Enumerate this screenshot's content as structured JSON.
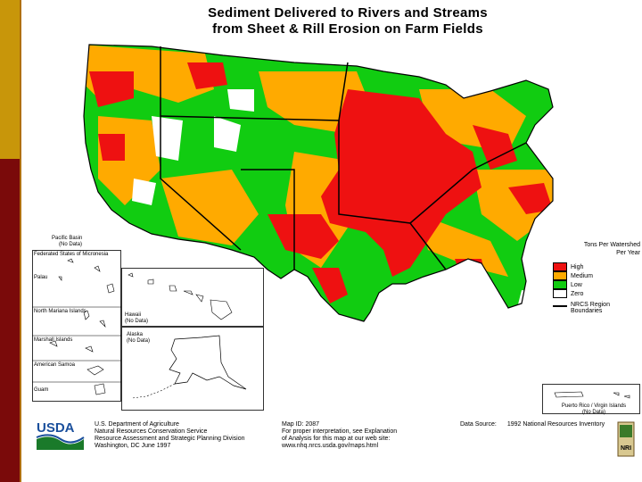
{
  "title_line1": "Sediment Delivered to Rivers and Streams",
  "title_line2": "from Sheet & Rill Erosion on Farm Fields",
  "legend": {
    "heading_line1": "Tons Per Watershed",
    "heading_line2": "Per Year",
    "items": [
      {
        "label": "High",
        "color": "#ee1111"
      },
      {
        "label": "Medium",
        "color": "#ffaa00"
      },
      {
        "label": "Low",
        "color": "#11cc11"
      },
      {
        "label": "Zero",
        "color": "#ffffff"
      }
    ],
    "boundary_line1": "NRCS Region",
    "boundary_line2": "Boundaries"
  },
  "insets": {
    "pacific_basin": "Pacific Basin",
    "pacific_basin_note": "(No Data)",
    "micronesia": "Federated States of Micronesia",
    "palau": "Palau",
    "north_mariana": "North Mariana Islands",
    "marshall": "Marshall Islands",
    "american_samoa": "American Samoa",
    "guam": "Guam",
    "hawaii": "Hawaii",
    "hawaii_note": "(No Data)",
    "alaska": "Alaska",
    "alaska_note": "(No Data)",
    "puerto_rico": "Puerto Rico / Virgin Islands",
    "puerto_rico_note": "(No Data)"
  },
  "footer": {
    "logo_text": "USDA",
    "agency_line1": "U.S. Department of Agriculture",
    "agency_line2": "Natural Resources Conservation Service",
    "agency_line3": "Resource Assessment and Strategic Planning Division",
    "agency_line4": "Washington, DC    June 1997",
    "mapid_line1": "Map ID: 2087",
    "mapid_line2": "For proper interpretation, see Explanation",
    "mapid_line3": "of Analysis for this map at our web site:",
    "mapid_line4": "www.nhq.nrcs.usda.gov/maps.html",
    "source_label": "Data Source:",
    "source_value": "1992 National Resources Inventory",
    "nri_logo": "NRI"
  },
  "colors": {
    "high": "#ee1111",
    "medium": "#ffaa00",
    "low": "#11cc11",
    "zero": "#ffffff",
    "gold_bar": "#c8960a",
    "maroon_bar": "#7a0a0a"
  }
}
